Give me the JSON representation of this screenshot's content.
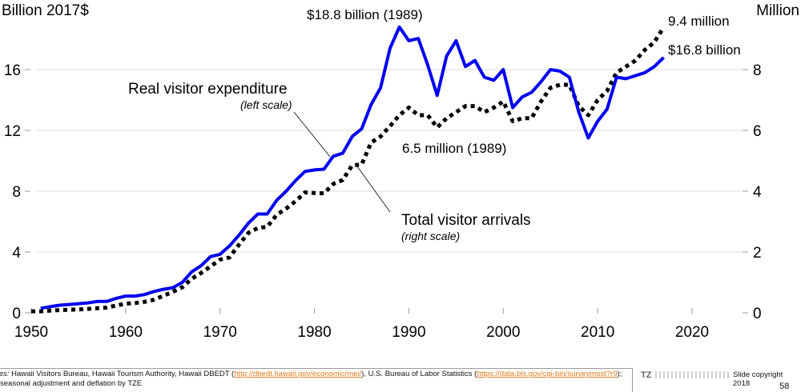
{
  "chart_data": {
    "type": "line",
    "title": "",
    "xlabel": "",
    "ylabel_left": "Billion 2017$",
    "ylabel_right": "Million",
    "xlim": [
      1950,
      2025
    ],
    "ylim_left": [
      0,
      20
    ],
    "ylim_right": [
      0,
      10
    ],
    "x_ticks": [
      1950,
      1960,
      1970,
      1980,
      1990,
      2000,
      2010,
      2020
    ],
    "x_tick_labels": [
      "1950",
      "1960",
      "1970",
      "1980",
      "1990",
      "2000",
      "2010",
      "2020"
    ],
    "y_left_ticks": [
      0,
      4,
      8,
      12,
      16
    ],
    "y_left_tick_labels": [
      "0",
      "4",
      "8",
      "12",
      "16"
    ],
    "y_right_ticks": [
      0,
      2,
      4,
      6,
      8
    ],
    "y_right_tick_labels": [
      "0",
      "2",
      "4",
      "6",
      "8"
    ],
    "grid": true,
    "legend": "none",
    "series": [
      {
        "name": "Real visitor expenditure",
        "axis": "left",
        "style": "solid",
        "color": "#0000ee",
        "x": [
          1951,
          1952,
          1953,
          1954,
          1955,
          1956,
          1957,
          1958,
          1959,
          1960,
          1961,
          1962,
          1963,
          1964,
          1965,
          1966,
          1967,
          1968,
          1969,
          1970,
          1971,
          1972,
          1973,
          1974,
          1975,
          1976,
          1977,
          1978,
          1979,
          1980,
          1981,
          1982,
          1983,
          1984,
          1985,
          1986,
          1987,
          1988,
          1989,
          1990,
          1991,
          1992,
          1993,
          1994,
          1995,
          1996,
          1997,
          1998,
          1999,
          2000,
          2001,
          2002,
          2003,
          2004,
          2005,
          2006,
          2007,
          2008,
          2009,
          2010,
          2011,
          2012,
          2013,
          2014,
          2015,
          2016,
          2017
        ],
        "values": [
          0.3,
          0.4,
          0.5,
          0.55,
          0.6,
          0.65,
          0.75,
          0.75,
          0.95,
          1.1,
          1.1,
          1.2,
          1.4,
          1.55,
          1.65,
          2.0,
          2.7,
          3.1,
          3.7,
          3.85,
          4.4,
          5.1,
          5.9,
          6.5,
          6.5,
          7.4,
          8.0,
          8.7,
          9.3,
          9.4,
          9.45,
          10.3,
          10.5,
          11.6,
          12.1,
          13.7,
          14.8,
          17.4,
          18.8,
          17.9,
          18.05,
          16.3,
          14.3,
          16.9,
          17.9,
          16.2,
          16.6,
          15.5,
          15.3,
          16.0,
          13.5,
          14.2,
          14.5,
          15.2,
          16.0,
          15.9,
          15.5,
          13.2,
          11.5,
          12.6,
          13.4,
          15.5,
          15.4,
          15.6,
          15.8,
          16.2,
          16.8
        ]
      },
      {
        "name": "Total visitor arrivals",
        "axis": "right",
        "style": "dotted",
        "color": "#000000",
        "x": [
          1950,
          1951,
          1952,
          1953,
          1954,
          1955,
          1956,
          1957,
          1958,
          1959,
          1960,
          1961,
          1962,
          1963,
          1964,
          1965,
          1966,
          1967,
          1968,
          1969,
          1970,
          1971,
          1972,
          1973,
          1974,
          1975,
          1976,
          1977,
          1978,
          1979,
          1980,
          1981,
          1982,
          1983,
          1984,
          1985,
          1986,
          1987,
          1988,
          1989,
          1990,
          1991,
          1992,
          1993,
          1994,
          1995,
          1996,
          1997,
          1998,
          1999,
          2000,
          2001,
          2002,
          2003,
          2004,
          2005,
          2006,
          2007,
          2008,
          2009,
          2010,
          2011,
          2012,
          2013,
          2014,
          2015,
          2016,
          2017
        ],
        "values": [
          0.05,
          0.05,
          0.07,
          0.09,
          0.1,
          0.11,
          0.13,
          0.15,
          0.17,
          0.24,
          0.3,
          0.32,
          0.36,
          0.43,
          0.56,
          0.69,
          0.84,
          1.12,
          1.31,
          1.53,
          1.75,
          1.82,
          2.24,
          2.63,
          2.79,
          2.83,
          3.22,
          3.43,
          3.67,
          3.96,
          3.94,
          3.93,
          4.24,
          4.37,
          4.85,
          4.88,
          5.6,
          5.8,
          6.14,
          6.5,
          6.75,
          6.5,
          6.5,
          6.1,
          6.4,
          6.6,
          6.8,
          6.8,
          6.6,
          6.75,
          6.95,
          6.3,
          6.4,
          6.4,
          6.95,
          7.4,
          7.5,
          7.5,
          6.8,
          6.5,
          7.0,
          7.3,
          7.9,
          8.1,
          8.3,
          8.65,
          8.9,
          9.4
        ]
      }
    ],
    "annotations": {
      "expenditure_label": "Real visitor expenditure",
      "expenditure_scale": "left scale",
      "arrivals_label": "Total visitor arrivals",
      "arrivals_scale": "right scale",
      "peak_expenditure": "$18.8 billion (1989)",
      "peak_arrivals": "6.5 million (1989)",
      "latest_arrivals": "9.4 million",
      "latest_expenditure": "$16.8 billion"
    }
  },
  "footer": {
    "sources_label": "Sources:",
    "sources_text_1": " Hawaii Visitors Bureau, Hawaii Tourism Authority, Hawaii DBEDT (",
    "link_1": "http://dbedt.hawaii.gov/economic/mei/",
    "sources_text_2": "), U.S. Bureau of Labor Statistics (",
    "link_2": "https://data.bls.gov/cgi-bin/surveymost?r9",
    "sources_text_3": "); seasonal adjustment and deflation by TZE",
    "logo": "TZ",
    "copyright": "Slide copyright 2018",
    "slide_number": "58"
  }
}
